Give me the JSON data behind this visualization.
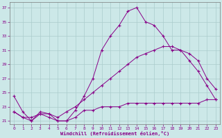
{
  "xlabel": "Windchill (Refroidissement éolien,°C)",
  "background_color": "#cce8e8",
  "grid_color": "#aacccc",
  "line_color": "#880088",
  "xlim": [
    -0.5,
    23.5
  ],
  "ylim": [
    20.5,
    37.8
  ],
  "xticks": [
    0,
    1,
    2,
    3,
    4,
    5,
    6,
    7,
    8,
    9,
    10,
    11,
    12,
    13,
    14,
    15,
    16,
    17,
    18,
    19,
    20,
    21,
    22,
    23
  ],
  "yticks": [
    21,
    23,
    25,
    27,
    29,
    31,
    33,
    35,
    37
  ],
  "line1_x": [
    0,
    1,
    2,
    3,
    4,
    5,
    6,
    7,
    8,
    9,
    10,
    11,
    12,
    13,
    14,
    15,
    16,
    17,
    18,
    19,
    20,
    21,
    22,
    23
  ],
  "line1_y": [
    24.5,
    22.3,
    21.0,
    22.3,
    22.0,
    21.0,
    21.0,
    22.5,
    24.5,
    27.0,
    31.0,
    33.0,
    34.5,
    36.5,
    37.0,
    35.0,
    34.5,
    33.0,
    31.0,
    31.0,
    29.5,
    28.0,
    26.0,
    24.0
  ],
  "line2_x": [
    0,
    1,
    2,
    3,
    4,
    5,
    6,
    7,
    8,
    9,
    10,
    11,
    12,
    13,
    14,
    15,
    16,
    17,
    18,
    19,
    20,
    21,
    22,
    23
  ],
  "line2_y": [
    22.3,
    21.5,
    21.5,
    22.0,
    22.0,
    21.5,
    22.3,
    23.0,
    24.0,
    25.0,
    26.0,
    27.0,
    28.0,
    29.0,
    30.0,
    30.5,
    31.0,
    31.5,
    31.5,
    31.0,
    30.5,
    29.5,
    27.0,
    25.5
  ],
  "line3_x": [
    0,
    1,
    2,
    3,
    4,
    5,
    6,
    7,
    8,
    9,
    10,
    11,
    12,
    13,
    14,
    15,
    16,
    17,
    18,
    19,
    20,
    21,
    22,
    23
  ],
  "line3_y": [
    22.3,
    21.5,
    21.0,
    22.0,
    21.5,
    21.0,
    21.0,
    21.5,
    22.5,
    22.5,
    23.0,
    23.0,
    23.0,
    23.5,
    23.5,
    23.5,
    23.5,
    23.5,
    23.5,
    23.5,
    23.5,
    23.5,
    24.0,
    24.0
  ],
  "marker": "+"
}
